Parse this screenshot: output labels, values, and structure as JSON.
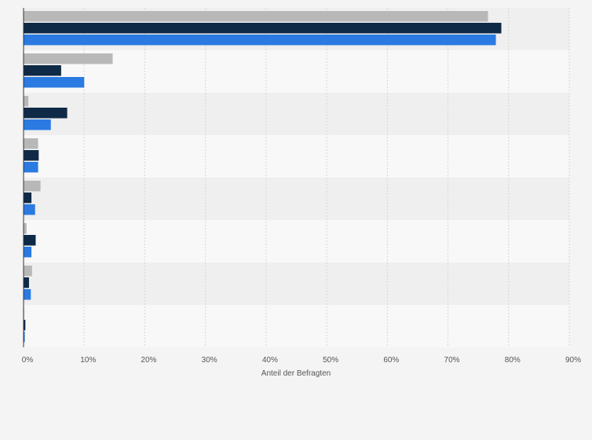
{
  "chart_data": {
    "type": "bar",
    "orientation": "horizontal",
    "grid": true,
    "legend": "none",
    "xlabel": "Anteil der Befragten",
    "xlim": [
      0,
      90
    ],
    "xticks": [
      {
        "value": 0,
        "label": "0%"
      },
      {
        "value": 10,
        "label": "10%"
      },
      {
        "value": 20,
        "label": "20%"
      },
      {
        "value": 30,
        "label": "30%"
      },
      {
        "value": 40,
        "label": "40%"
      },
      {
        "value": 50,
        "label": "50%"
      },
      {
        "value": 60,
        "label": "60%"
      },
      {
        "value": 70,
        "label": "70%"
      },
      {
        "value": 80,
        "label": "80%"
      },
      {
        "value": 90,
        "label": "90%"
      }
    ],
    "categories": [
      "",
      "",
      "",
      "",
      "",
      "",
      "",
      ""
    ],
    "series": [
      {
        "color": "#b8b8b8",
        "values": [
          76.6,
          14.7,
          0.8,
          2.4,
          2.8,
          0.5,
          1.4,
          0.1
        ]
      },
      {
        "color": "#0f2a47",
        "values": [
          78.8,
          6.2,
          7.2,
          2.5,
          1.3,
          2.0,
          0.9,
          0.3
        ]
      },
      {
        "color": "#2a7ae2",
        "values": [
          77.9,
          10.0,
          4.5,
          2.4,
          1.9,
          1.3,
          1.2,
          0.2
        ]
      }
    ]
  }
}
